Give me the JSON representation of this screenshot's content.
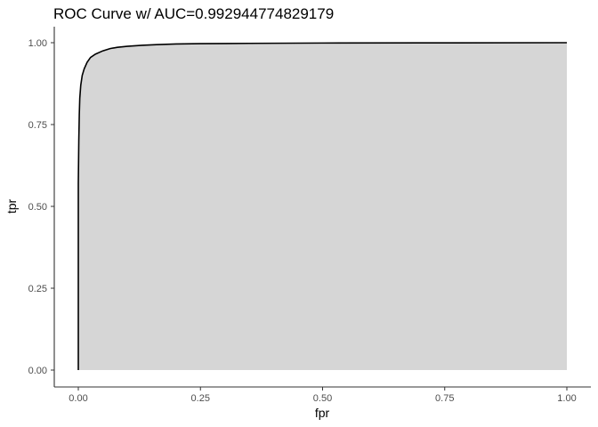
{
  "chart_data": {
    "type": "area",
    "title": "ROC Curve w/ AUC=0.992944774829179",
    "xlabel": "fpr",
    "ylabel": "tpr",
    "xlim": [
      0,
      1
    ],
    "ylim": [
      0,
      1
    ],
    "x_ticks": [
      "0.00",
      "0.25",
      "0.50",
      "0.75",
      "1.00"
    ],
    "y_ticks": [
      "0.00",
      "0.25",
      "0.50",
      "0.75",
      "1.00"
    ],
    "grid": false,
    "series": [
      {
        "x": [
          0.0,
          0.0,
          0.001,
          0.002,
          0.003,
          0.005,
          0.008,
          0.012,
          0.018,
          0.025,
          0.035,
          0.05,
          0.065,
          0.08,
          0.1,
          0.13,
          0.16,
          0.2,
          0.25,
          0.35,
          0.5,
          0.7,
          1.0
        ],
        "y": [
          0.0,
          0.57,
          0.7,
          0.78,
          0.83,
          0.87,
          0.9,
          0.92,
          0.94,
          0.955,
          0.965,
          0.975,
          0.982,
          0.986,
          0.989,
          0.992,
          0.994,
          0.996,
          0.997,
          0.998,
          0.999,
          0.9995,
          1.0
        ]
      }
    ],
    "colors": {
      "area_fill": "#d6d6d6",
      "line": "#000000",
      "axis": "#333333",
      "tick_text": "#4d4d4d",
      "background": "#ffffff"
    }
  }
}
